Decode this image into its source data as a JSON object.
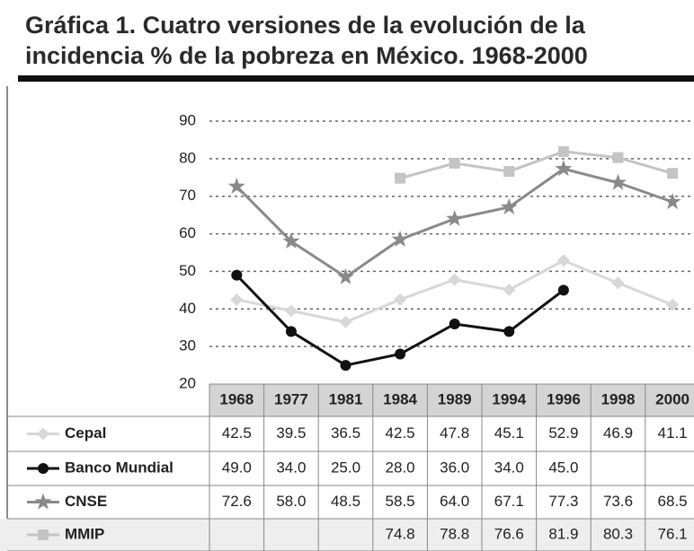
{
  "chart_data": {
    "type": "line",
    "title": "Gráfica 1. Cuatro versiones de la evolución de la incidencia % de la pobreza en México. 1968-2000",
    "categories": [
      "1968",
      "1977",
      "1981",
      "1984",
      "1989",
      "1994",
      "1996",
      "1998",
      "2000"
    ],
    "series": [
      {
        "name": "Cepal",
        "color": "#d8d8d8",
        "marker": "diamond",
        "values": [
          42.5,
          39.5,
          36.5,
          42.5,
          47.8,
          45.1,
          52.9,
          46.9,
          41.1
        ],
        "value_labels": [
          "42.5",
          "39.5",
          "36.5",
          "42.5",
          "47.8",
          "45.1",
          "52.9",
          "46.9",
          "41.1"
        ]
      },
      {
        "name": "Banco Mundial",
        "color": "#111111",
        "marker": "circle",
        "values": [
          49.0,
          34.0,
          25.0,
          28.0,
          36.0,
          34.0,
          45.0,
          null,
          null
        ],
        "value_labels": [
          "49.0",
          "34.0",
          "25.0",
          "28.0",
          "36.0",
          "34.0",
          "45.0",
          null,
          null
        ]
      },
      {
        "name": "CNSE",
        "color": "#8a8a8a",
        "marker": "star",
        "values": [
          72.6,
          58.0,
          48.5,
          58.5,
          64.0,
          67.1,
          77.3,
          73.6,
          68.5
        ],
        "value_labels": [
          "72.6",
          "58.0",
          "48.5",
          "58.5",
          "64.0",
          "67.1",
          "77.3",
          "73.6",
          "68.5"
        ]
      },
      {
        "name": "MMIP",
        "color": "#c4c4c4",
        "marker": "square",
        "values": [
          null,
          null,
          null,
          74.8,
          78.8,
          76.6,
          81.9,
          80.3,
          76.1
        ],
        "value_labels": [
          null,
          null,
          null,
          "74.8",
          "78.8",
          "76.6",
          "81.9",
          "80.3",
          "76.1"
        ]
      }
    ],
    "ylim": [
      20,
      90
    ],
    "yticks": [
      20,
      30,
      40,
      50,
      60,
      70,
      80,
      90
    ],
    "grid": true
  }
}
